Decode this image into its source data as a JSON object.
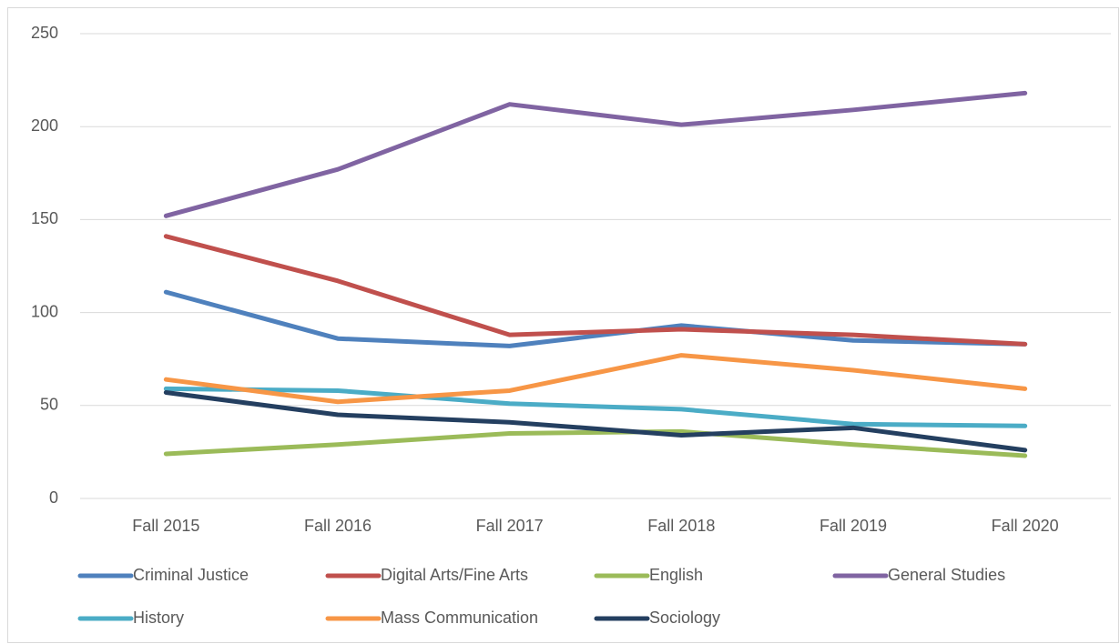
{
  "chart_data": {
    "type": "line",
    "categories": [
      "Fall 2015",
      "Fall 2016",
      "Fall 2017",
      "Fall 2018",
      "Fall 2019",
      "Fall 2020"
    ],
    "series": [
      {
        "name": "Criminal Justice",
        "color": "#4f81bd",
        "values": [
          111,
          86,
          82,
          93,
          85,
          83
        ]
      },
      {
        "name": "Digital Arts/Fine Arts",
        "color": "#c0504d",
        "values": [
          141,
          117,
          88,
          91,
          88,
          83
        ]
      },
      {
        "name": "English",
        "color": "#9bbb59",
        "values": [
          24,
          29,
          35,
          36,
          29,
          23
        ]
      },
      {
        "name": "General Studies",
        "color": "#8064a2",
        "values": [
          152,
          177,
          212,
          201,
          209,
          218
        ]
      },
      {
        "name": "History",
        "color": "#4bacc6",
        "values": [
          59,
          58,
          51,
          48,
          40,
          39
        ]
      },
      {
        "name": "Mass Communication",
        "color": "#f79646",
        "values": [
          64,
          52,
          58,
          77,
          69,
          59
        ]
      },
      {
        "name": "Sociology",
        "color": "#243f60",
        "values": [
          57,
          45,
          41,
          34,
          38,
          26
        ]
      }
    ],
    "ylim": [
      0,
      250
    ],
    "yticks": [
      0,
      50,
      100,
      150,
      200,
      250
    ],
    "grid": true,
    "legend": "bottom"
  }
}
